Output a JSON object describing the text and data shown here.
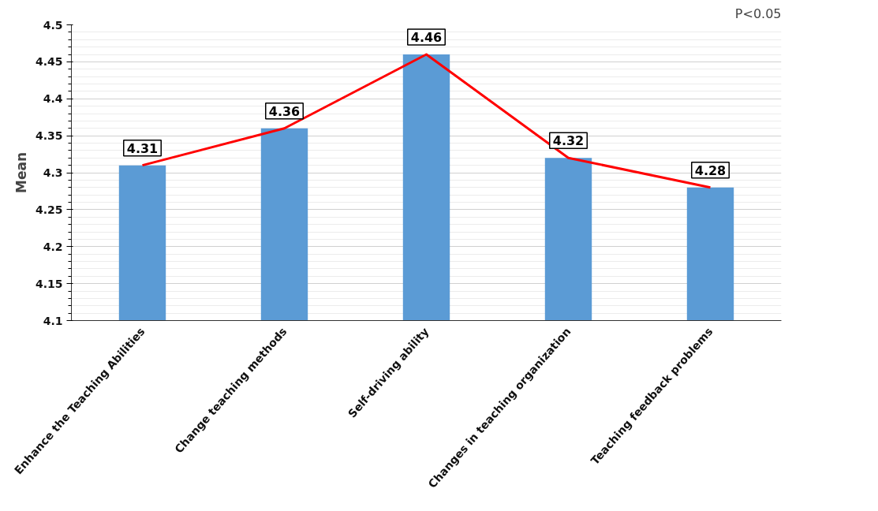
{
  "chart_data": {
    "type": "bar",
    "ylabel": "Mean",
    "categories": [
      "Enhance the Teaching Abilities",
      "Change teaching methods",
      "Self-driving ability",
      "Changes in teaching organization",
      "Teaching feedback problems"
    ],
    "series": [
      {
        "color": "#5b9bd5",
        "values": [
          4.31,
          4.36,
          4.46,
          4.32,
          4.28
        ],
        "value_labels": [
          "4.31",
          "4.36",
          "4.46",
          "4.32",
          "4.28"
        ]
      },
      {
        "type": "line",
        "color": "#ff0000",
        "values": [
          4.31,
          4.36,
          4.46,
          4.32,
          4.28
        ]
      }
    ],
    "ylim": [
      4.1,
      4.5
    ],
    "yticks": [
      4.1,
      4.15,
      4.2,
      4.25,
      4.3,
      4.35,
      4.4,
      4.45,
      4.5
    ],
    "grid": "y",
    "line_style": "solid",
    "annotations": [
      "P<0.05"
    ]
  }
}
